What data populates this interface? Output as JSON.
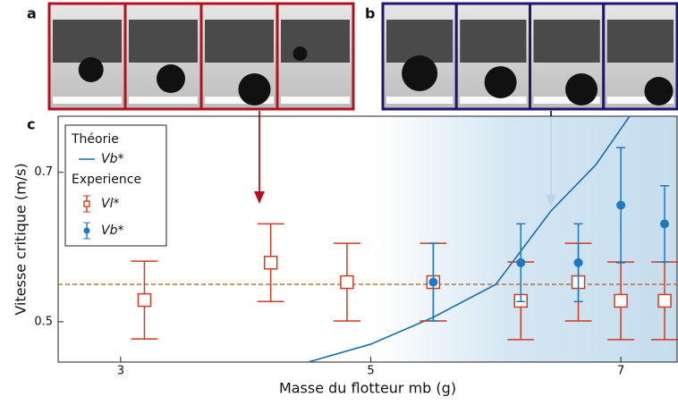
{
  "panel_labels": [
    "a",
    "b"
  ],
  "chart_data": {
    "type": "scatter",
    "panel_label": "c",
    "x_label": "Masse du flotteur mb (g)",
    "y_label": "Vitesse critique (m/s)",
    "xlim": [
      2.5,
      7.45
    ],
    "ylim": [
      0.446,
      0.775
    ],
    "xticks": [
      3,
      5,
      7
    ],
    "yticks": [
      0.5,
      0.7
    ],
    "legend_groups": [
      "Théorie",
      "Experience"
    ],
    "reference_line": 0.55,
    "series": [
      {
        "name": "Vb*",
        "kind": "line",
        "color": "#1a6fa8",
        "x": [
          4.5,
          5.0,
          5.5,
          6.0,
          6.44,
          6.8,
          7.07
        ],
        "values": [
          0.446,
          0.47,
          0.506,
          0.55,
          0.648,
          0.71,
          0.775
        ]
      },
      {
        "name": "Vl*",
        "kind": "errorbar",
        "marker": "square",
        "color": "#d23a1e",
        "x": [
          3.19,
          4.2,
          4.81,
          5.5,
          6.2,
          6.66,
          7.0,
          7.35
        ],
        "values": [
          0.529,
          0.579,
          0.553,
          0.553,
          0.528,
          0.553,
          0.528,
          0.528
        ],
        "errors": [
          0.052,
          0.052,
          0.052,
          0.052,
          0.052,
          0.052,
          0.052,
          0.052
        ]
      },
      {
        "name": "Vb*",
        "kind": "errorbar",
        "marker": "circle",
        "color": "#1f78c0",
        "x": [
          5.5,
          6.2,
          6.66,
          7.0,
          7.35
        ],
        "values": [
          0.553,
          0.579,
          0.579,
          0.656,
          0.631
        ],
        "errors": [
          0.052,
          0.052,
          0.052,
          0.077,
          0.051
        ]
      }
    ]
  }
}
